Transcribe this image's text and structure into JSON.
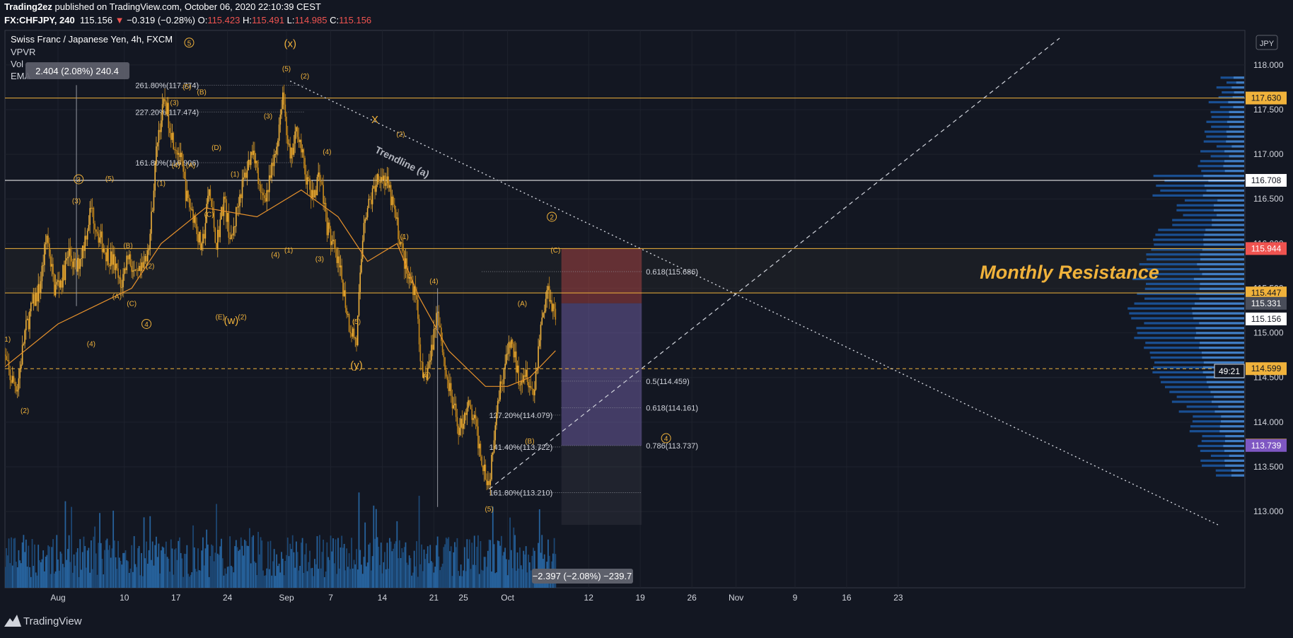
{
  "header": {
    "author": "Trading2ez",
    "published_text": " published on TradingView.com, October 06, 2020 22:10:39 CEST",
    "symbol": "FX:CHFJPY, 240",
    "last_price": "115.156",
    "change_arrow": "▼",
    "change": "−0.319 (−0.28%)",
    "o_label": "O:",
    "o_value": "115.423",
    "h_label": "H:",
    "h_value": "115.491",
    "l_label": "L:",
    "l_value": "114.985",
    "c_label": "C:",
    "c_value": "115.156"
  },
  "legend": {
    "title": "Swiss Franc / Japanese Yen, 4h, FXCM",
    "indicators": [
      "VPVR",
      "Vol",
      "EMA"
    ],
    "measure_box": "2.404 (2.08%) 240.4"
  },
  "footer": {
    "brand": "TradingView"
  },
  "chart_data": {
    "type": "candlestick",
    "title": "Swiss Franc / Japanese Yen, 4h, FXCM",
    "currency": "JPY",
    "ylim": [
      112.85,
      118.3
    ],
    "y_ticks": [
      113.0,
      113.5,
      114.0,
      114.5,
      115.0,
      115.5,
      116.0,
      116.5,
      117.0,
      117.5,
      118.0
    ],
    "y_tick_labels": [
      "113.000",
      "113.500",
      "114.000",
      "114.500",
      "115.000",
      "115.500",
      "116.000",
      "116.500",
      "117.000",
      "117.500",
      "118.000"
    ],
    "x_ticks": [
      "Aug",
      "10",
      "17",
      "24",
      "Sep",
      "7",
      "14",
      "21",
      "25",
      "Oct",
      "12",
      "19",
      "26",
      "Nov",
      "9",
      "16",
      "23"
    ],
    "x_tick_days": [
      0,
      9,
      16,
      23,
      31,
      37,
      44,
      51,
      55,
      61,
      72,
      79,
      86,
      92,
      100,
      107,
      114
    ],
    "price_path": [
      [
        -7.5,
        114.8
      ],
      [
        -6.5,
        114.5
      ],
      [
        -5.5,
        114.4
      ],
      [
        -4.5,
        115.0
      ],
      [
        -3.5,
        115.3
      ],
      [
        -2.5,
        115.5
      ],
      [
        -1.5,
        116.1
      ],
      [
        -0.5,
        115.5
      ],
      [
        0.5,
        115.6
      ],
      [
        1.5,
        115.9
      ],
      [
        2.5,
        115.7
      ],
      [
        3.5,
        116.0
      ],
      [
        4.5,
        116.4
      ],
      [
        5.5,
        116.1
      ],
      [
        6.5,
        115.9
      ],
      [
        7.5,
        115.8
      ],
      [
        8.5,
        115.5
      ],
      [
        9.5,
        115.9
      ],
      [
        10.5,
        115.6
      ],
      [
        11.5,
        115.7
      ],
      [
        12.5,
        116.1
      ],
      [
        13.5,
        117.2
      ],
      [
        14.5,
        117.6
      ],
      [
        15.5,
        117.2
      ],
      [
        16.5,
        117.0
      ],
      [
        17.5,
        116.5
      ],
      [
        18.5,
        116.3
      ],
      [
        19.5,
        115.9
      ],
      [
        20.5,
        116.6
      ],
      [
        21.5,
        116.0
      ],
      [
        22.5,
        116.5
      ],
      [
        23.5,
        116.0
      ],
      [
        24.5,
        116.5
      ],
      [
        25.5,
        116.8
      ],
      [
        26.5,
        117.1
      ],
      [
        27.5,
        116.5
      ],
      [
        28.5,
        116.6
      ],
      [
        29.5,
        117.0
      ],
      [
        30.5,
        117.7
      ],
      [
        31.5,
        116.9
      ],
      [
        32.5,
        117.3
      ],
      [
        33.5,
        116.8
      ],
      [
        34.5,
        116.5
      ],
      [
        35.5,
        116.8
      ],
      [
        36.5,
        116.2
      ],
      [
        37.5,
        115.9
      ],
      [
        38.5,
        115.6
      ],
      [
        39.5,
        115.1
      ],
      [
        40.5,
        114.9
      ],
      [
        41.5,
        116.3
      ],
      [
        42.5,
        116.5
      ],
      [
        43.5,
        116.8
      ],
      [
        44.5,
        116.7
      ],
      [
        45.5,
        116.4
      ],
      [
        46.5,
        116.0
      ],
      [
        47.5,
        115.6
      ],
      [
        48.5,
        115.5
      ],
      [
        49.5,
        114.4
      ],
      [
        50.5,
        114.7
      ],
      [
        51.5,
        115.3
      ],
      [
        52.5,
        114.6
      ],
      [
        53.5,
        114.2
      ],
      [
        54.5,
        113.9
      ],
      [
        55.5,
        114.2
      ],
      [
        56.5,
        114.0
      ],
      [
        57.5,
        113.6
      ],
      [
        58.5,
        113.3
      ],
      [
        59.5,
        114.2
      ],
      [
        60.5,
        114.6
      ],
      [
        61.5,
        114.9
      ],
      [
        62.5,
        114.5
      ],
      [
        63.5,
        114.6
      ],
      [
        64.5,
        114.3
      ],
      [
        65.5,
        115.1
      ],
      [
        66.5,
        115.5
      ],
      [
        67.5,
        115.2
      ]
    ],
    "ema_path": [
      [
        -7.5,
        114.6
      ],
      [
        0.0,
        115.1
      ],
      [
        10.0,
        115.5
      ],
      [
        14.0,
        116.0
      ],
      [
        20.0,
        116.4
      ],
      [
        27.0,
        116.3
      ],
      [
        33.0,
        116.6
      ],
      [
        38.0,
        116.3
      ],
      [
        42.0,
        115.8
      ],
      [
        46.0,
        116.0
      ],
      [
        49.0,
        115.4
      ],
      [
        53.0,
        114.8
      ],
      [
        58.0,
        114.4
      ],
      [
        61.0,
        114.4
      ],
      [
        64.0,
        114.5
      ],
      [
        67.5,
        114.8
      ]
    ],
    "horizontal_levels": [
      {
        "price": 117.63,
        "color": "#f0b23b",
        "label": "117.630"
      },
      {
        "price": 116.708,
        "color": "#ffffff",
        "label": "116.708"
      },
      {
        "price": 115.944,
        "color": "#f0b23b",
        "label": "115.944"
      },
      {
        "price": 115.447,
        "color": "#f0b23b",
        "label": "115.447"
      },
      {
        "price": 114.599,
        "color": "#f0b23b",
        "label": "114.599",
        "dashed": true
      }
    ],
    "price_labels": [
      {
        "price": 117.63,
        "label": "117.630",
        "bg": "#f0b23b",
        "fg": "#131722"
      },
      {
        "price": 116.708,
        "label": "116.708",
        "bg": "#ffffff",
        "fg": "#131722"
      },
      {
        "price": 115.944,
        "label": "115.944",
        "bg": "#ef5350",
        "fg": "#ffffff"
      },
      {
        "price": 115.447,
        "label": "115.447",
        "bg": "#f0b23b",
        "fg": "#131722"
      },
      {
        "price": 115.331,
        "label": "115.331",
        "bg": "#4a4e5a",
        "fg": "#ffffff"
      },
      {
        "price": 115.156,
        "label": "115.156",
        "bg": "#ffffff",
        "fg": "#131722"
      },
      {
        "price": 114.599,
        "label": "114.599",
        "bg": "#f0b23b",
        "fg": "#131722"
      },
      {
        "price": 113.743,
        "label": "113.743",
        "bg": "#f0b23b",
        "fg": "#131722"
      },
      {
        "price": 113.739,
        "label": "113.739",
        "bg": "#7e57c2",
        "fg": "#ffffff"
      }
    ],
    "countdown": "49:21",
    "fib_levels": [
      {
        "label": "261.80%(117.774)",
        "price": 117.774
      },
      {
        "label": "227.20%(117.474)",
        "price": 117.474
      },
      {
        "label": "161.80%(116.906)",
        "price": 116.906
      },
      {
        "label": "0.618(115.686)",
        "price": 115.686
      },
      {
        "label": "0.5(114.459)",
        "price": 114.459
      },
      {
        "label": "0.618(114.161)",
        "price": 114.161
      },
      {
        "label": "127.20%(114.079)",
        "price": 114.079
      },
      {
        "label": "141.40%(113.722)",
        "price": 113.722
      },
      {
        "label": "0.786(113.737)",
        "price": 113.737
      },
      {
        "label": "161.80%(113.210)",
        "price": 113.21
      }
    ],
    "annotations": {
      "trendline": "Trendline (a)",
      "zone": "Monthly Resistance",
      "measure_bottom": "−2.397 (−2.08%) −239.7"
    },
    "wave_labels": [
      {
        "t": "(x)",
        "d": 31.5,
        "p": 118.2
      },
      {
        "t": "(w)",
        "d": 23.5,
        "p": 115.1
      },
      {
        "t": "(y)",
        "d": 40.5,
        "p": 114.6
      },
      {
        "t": "X",
        "d": 43.0,
        "p": 117.35
      },
      {
        "t": "(5)",
        "d": 31.0,
        "p": 117.93
      },
      {
        "t": "(2)",
        "d": 33.5,
        "p": 117.85
      },
      {
        "t": "(5)",
        "d": 17.5,
        "p": 117.73
      },
      {
        "t": "(B)",
        "d": 19.5,
        "p": 117.67
      },
      {
        "t": "(3)",
        "d": 15.8,
        "p": 117.55
      },
      {
        "t": "(D)",
        "d": 21.5,
        "p": 117.05
      },
      {
        "t": "(4)",
        "d": 16.0,
        "p": 116.85
      },
      {
        "t": "(A)",
        "d": 18.0,
        "p": 116.85
      },
      {
        "t": "(1)",
        "d": 14.0,
        "p": 116.65
      },
      {
        "t": "(1)",
        "d": 24.0,
        "p": 116.75
      },
      {
        "t": "(3)",
        "d": 28.5,
        "p": 117.4
      },
      {
        "t": "(4)",
        "d": 36.5,
        "p": 117.0
      },
      {
        "t": "(2)",
        "d": 46.5,
        "p": 117.2
      },
      {
        "t": "(C)",
        "d": 20.5,
        "p": 116.3
      },
      {
        "t": "(4)",
        "d": 29.5,
        "p": 115.85
      },
      {
        "t": "(1)",
        "d": 31.3,
        "p": 115.9
      },
      {
        "t": "(2)",
        "d": 25.0,
        "p": 115.15
      },
      {
        "t": "(E)",
        "d": 22.0,
        "p": 115.15
      },
      {
        "t": "(3)",
        "d": 35.5,
        "p": 115.8
      },
      {
        "t": "(B)",
        "d": 9.5,
        "p": 115.95
      },
      {
        "t": "(2)",
        "d": 12.5,
        "p": 115.72
      },
      {
        "t": "(A)",
        "d": 8.0,
        "p": 115.38
      },
      {
        "t": "(C)",
        "d": 10.0,
        "p": 115.3
      },
      {
        "t": "(3)",
        "d": 2.5,
        "p": 116.45
      },
      {
        "t": "(5)",
        "d": 7.0,
        "p": 116.7
      },
      {
        "t": "(4)",
        "d": 4.5,
        "p": 114.85
      },
      {
        "t": "(1)",
        "d": -7.0,
        "p": 114.9
      },
      {
        "t": "(2)",
        "d": -4.5,
        "p": 114.1
      },
      {
        "t": "(1)",
        "d": 47.0,
        "p": 116.05
      },
      {
        "t": "(4)",
        "d": 51.0,
        "p": 115.55
      },
      {
        "t": "(3)",
        "d": 50.0,
        "p": 114.5
      },
      {
        "t": "(5)",
        "d": 40.5,
        "p": 115.1
      },
      {
        "t": "(A)",
        "d": 63.0,
        "p": 115.3
      },
      {
        "t": "(B)",
        "d": 64.0,
        "p": 113.76
      },
      {
        "t": "(C)",
        "d": 67.5,
        "p": 115.9
      },
      {
        "t": "(5)",
        "d": 58.5,
        "p": 113.0
      }
    ],
    "circled_labels": [
      {
        "t": "5",
        "d": 17.8,
        "p": 118.25
      },
      {
        "t": "3",
        "d": 2.8,
        "p": 116.72
      },
      {
        "t": "4",
        "d": 12.0,
        "p": 115.1
      },
      {
        "t": "2",
        "d": 67.0,
        "p": 116.3
      },
      {
        "t": "4",
        "d": 82.5,
        "p": 113.82
      }
    ]
  }
}
